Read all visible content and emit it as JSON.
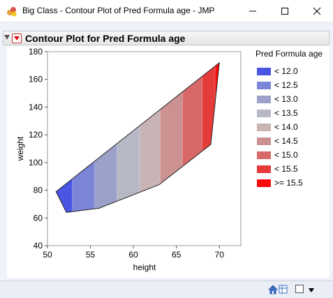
{
  "window": {
    "title": "Big Class - Contour Plot of Pred Formula age - JMP",
    "minimize_icon": "minimize-icon",
    "maximize_icon": "maximize-icon",
    "close_icon": "close-icon"
  },
  "outline": {
    "title": "Contour Plot for Pred Formula age"
  },
  "chart_data": {
    "type": "contour",
    "title": "",
    "xlabel": "height",
    "ylabel": "weight",
    "xlim": [
      50,
      72.5
    ],
    "ylim": [
      40,
      180
    ],
    "x_ticks": [
      "50",
      "55",
      "60",
      "65",
      "70"
    ],
    "y_ticks": [
      "40",
      "60",
      "80",
      "100",
      "120",
      "140",
      "160",
      "180"
    ],
    "hull": [
      [
        51,
        79
      ],
      [
        52.2,
        64
      ],
      [
        56,
        67
      ],
      [
        63,
        84
      ],
      [
        69,
        113
      ],
      [
        70,
        172
      ]
    ],
    "contour_x_boundaries": [
      52.9,
      55.5,
      58.1,
      60.7,
      63.1,
      65.7,
      68.0,
      69.5
    ],
    "legend": {
      "title": "Pred Formula age",
      "position": "right",
      "entries": [
        {
          "label": "< 12.0",
          "color": "#4a55e3"
        },
        {
          "label": "< 12.5",
          "color": "#7c85d8"
        },
        {
          "label": "< 13.0",
          "color": "#9ca1c9"
        },
        {
          "label": "< 13.5",
          "color": "#b7b8c6"
        },
        {
          "label": "< 14.0",
          "color": "#c8b4b4"
        },
        {
          "label": "< 14.5",
          "color": "#cc9292"
        },
        {
          "label": "< 15.0",
          "color": "#d86868"
        },
        {
          "label": "< 15.5",
          "color": "#e53b3b"
        },
        {
          "label": ">= 15.5",
          "color": "#fa0b0b"
        }
      ]
    }
  },
  "statusbar": {
    "home_icon": "home-icon",
    "table-icon": "table-icon",
    "window_list_label": ""
  }
}
